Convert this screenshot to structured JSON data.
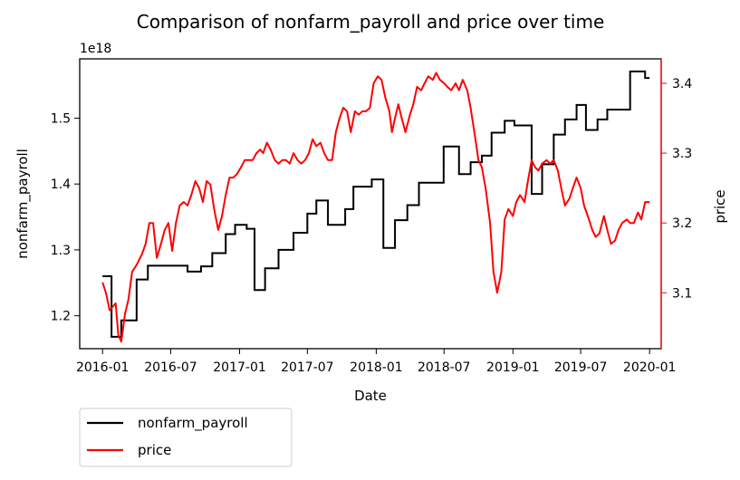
{
  "chart_data": {
    "type": "line",
    "title": "Comparison of nonfarm_payroll and price over time",
    "xlabel": "Date",
    "y1label": "nonfarm_payroll",
    "y2label": "price",
    "y1_offset_label": "1e18",
    "y1_scale": 1e+18,
    "x_range": [
      "2015-11-01",
      "2020-02-01"
    ],
    "y1_range": [
      1.15,
      1.59
    ],
    "y2_range": [
      3.02,
      3.435
    ],
    "x_ticks": [
      "2016-01",
      "2016-07",
      "2017-01",
      "2017-07",
      "2018-01",
      "2018-07",
      "2019-01",
      "2019-07",
      "2020-01"
    ],
    "y1_ticks": [
      "1.2",
      "1.3",
      "1.4",
      "1.5"
    ],
    "y2_ticks": [
      "3.1",
      "3.2",
      "3.3",
      "3.4"
    ],
    "colors": {
      "nonfarm_payroll": "#000000",
      "price": "#ff0000"
    },
    "legend_placement": "below-left",
    "series": [
      {
        "name": "nonfarm_payroll",
        "axis": "left",
        "step": true,
        "points": [
          [
            "2016-01-01",
            1.26
          ],
          [
            "2016-01-25",
            1.168
          ],
          [
            "2016-02-20",
            1.193
          ],
          [
            "2016-04-01",
            1.255
          ],
          [
            "2016-05-01",
            1.276
          ],
          [
            "2016-08-15",
            1.267
          ],
          [
            "2016-09-20",
            1.275
          ],
          [
            "2016-10-20",
            1.295
          ],
          [
            "2016-11-25",
            1.324
          ],
          [
            "2016-12-20",
            1.338
          ],
          [
            "2017-01-20",
            1.332
          ],
          [
            "2017-02-10",
            1.239
          ],
          [
            "2017-03-10",
            1.272
          ],
          [
            "2017-04-15",
            1.3
          ],
          [
            "2017-05-25",
            1.326
          ],
          [
            "2017-07-01",
            1.355
          ],
          [
            "2017-07-25",
            1.375
          ],
          [
            "2017-08-25",
            1.338
          ],
          [
            "2017-10-10",
            1.362
          ],
          [
            "2017-11-01",
            1.396
          ],
          [
            "2017-12-20",
            1.407
          ],
          [
            "2018-01-20",
            1.303
          ],
          [
            "2018-02-20",
            1.345
          ],
          [
            "2018-03-25",
            1.368
          ],
          [
            "2018-04-25",
            1.402
          ],
          [
            "2018-06-30",
            1.457
          ],
          [
            "2018-08-10",
            1.415
          ],
          [
            "2018-09-10",
            1.433
          ],
          [
            "2018-10-10",
            1.443
          ],
          [
            "2018-11-05",
            1.478
          ],
          [
            "2018-12-10",
            1.496
          ],
          [
            "2019-01-05",
            1.489
          ],
          [
            "2019-02-20",
            1.385
          ],
          [
            "2019-03-20",
            1.43
          ],
          [
            "2019-04-20",
            1.475
          ],
          [
            "2019-05-20",
            1.498
          ],
          [
            "2019-06-20",
            1.52
          ],
          [
            "2019-07-15",
            1.482
          ],
          [
            "2019-08-15",
            1.498
          ],
          [
            "2019-09-10",
            1.513
          ],
          [
            "2019-11-10",
            1.571
          ],
          [
            "2019-12-20",
            1.561
          ],
          [
            "2020-01-01",
            1.561
          ]
        ]
      },
      {
        "name": "price",
        "axis": "right",
        "step": false,
        "points": [
          [
            "2016-01-01",
            3.115
          ],
          [
            "2016-01-10",
            3.1
          ],
          [
            "2016-01-20",
            3.075
          ],
          [
            "2016-02-05",
            3.085
          ],
          [
            "2016-02-12",
            3.04
          ],
          [
            "2016-02-20",
            3.03
          ],
          [
            "2016-03-01",
            3.07
          ],
          [
            "2016-03-10",
            3.09
          ],
          [
            "2016-03-20",
            3.13
          ],
          [
            "2016-04-01",
            3.14
          ],
          [
            "2016-04-15",
            3.155
          ],
          [
            "2016-04-25",
            3.17
          ],
          [
            "2016-05-05",
            3.2
          ],
          [
            "2016-05-15",
            3.2
          ],
          [
            "2016-05-25",
            3.15
          ],
          [
            "2016-06-05",
            3.17
          ],
          [
            "2016-06-15",
            3.19
          ],
          [
            "2016-06-25",
            3.2
          ],
          [
            "2016-07-05",
            3.16
          ],
          [
            "2016-07-15",
            3.2
          ],
          [
            "2016-07-25",
            3.225
          ],
          [
            "2016-08-05",
            3.23
          ],
          [
            "2016-08-15",
            3.225
          ],
          [
            "2016-08-25",
            3.24
          ],
          [
            "2016-09-05",
            3.26
          ],
          [
            "2016-09-15",
            3.25
          ],
          [
            "2016-09-25",
            3.23
          ],
          [
            "2016-10-05",
            3.26
          ],
          [
            "2016-10-15",
            3.255
          ],
          [
            "2016-10-25",
            3.22
          ],
          [
            "2016-11-05",
            3.19
          ],
          [
            "2016-11-15",
            3.21
          ],
          [
            "2016-11-25",
            3.24
          ],
          [
            "2016-12-05",
            3.265
          ],
          [
            "2016-12-15",
            3.265
          ],
          [
            "2016-12-25",
            3.27
          ],
          [
            "2017-01-05",
            3.28
          ],
          [
            "2017-01-15",
            3.29
          ],
          [
            "2017-01-25",
            3.29
          ],
          [
            "2017-02-05",
            3.29
          ],
          [
            "2017-02-15",
            3.3
          ],
          [
            "2017-02-25",
            3.305
          ],
          [
            "2017-03-05",
            3.3
          ],
          [
            "2017-03-15",
            3.315
          ],
          [
            "2017-03-25",
            3.305
          ],
          [
            "2017-04-05",
            3.29
          ],
          [
            "2017-04-15",
            3.285
          ],
          [
            "2017-04-25",
            3.29
          ],
          [
            "2017-05-05",
            3.29
          ],
          [
            "2017-05-15",
            3.285
          ],
          [
            "2017-05-25",
            3.3
          ],
          [
            "2017-06-05",
            3.29
          ],
          [
            "2017-06-15",
            3.285
          ],
          [
            "2017-06-25",
            3.29
          ],
          [
            "2017-07-05",
            3.3
          ],
          [
            "2017-07-15",
            3.32
          ],
          [
            "2017-07-25",
            3.31
          ],
          [
            "2017-08-05",
            3.315
          ],
          [
            "2017-08-15",
            3.3
          ],
          [
            "2017-08-25",
            3.29
          ],
          [
            "2017-09-05",
            3.29
          ],
          [
            "2017-09-15",
            3.33
          ],
          [
            "2017-09-25",
            3.35
          ],
          [
            "2017-10-05",
            3.365
          ],
          [
            "2017-10-15",
            3.36
          ],
          [
            "2017-10-25",
            3.33
          ],
          [
            "2017-11-05",
            3.36
          ],
          [
            "2017-11-15",
            3.355
          ],
          [
            "2017-11-25",
            3.36
          ],
          [
            "2017-12-05",
            3.36
          ],
          [
            "2017-12-15",
            3.365
          ],
          [
            "2017-12-25",
            3.4
          ],
          [
            "2018-01-05",
            3.41
          ],
          [
            "2018-01-15",
            3.405
          ],
          [
            "2018-01-25",
            3.38
          ],
          [
            "2018-02-05",
            3.36
          ],
          [
            "2018-02-12",
            3.33
          ],
          [
            "2018-02-20",
            3.35
          ],
          [
            "2018-03-01",
            3.37
          ],
          [
            "2018-03-10",
            3.35
          ],
          [
            "2018-03-20",
            3.33
          ],
          [
            "2018-04-01",
            3.355
          ],
          [
            "2018-04-10",
            3.37
          ],
          [
            "2018-04-20",
            3.395
          ],
          [
            "2018-05-01",
            3.39
          ],
          [
            "2018-05-10",
            3.4
          ],
          [
            "2018-05-20",
            3.41
          ],
          [
            "2018-06-01",
            3.405
          ],
          [
            "2018-06-10",
            3.415
          ],
          [
            "2018-06-20",
            3.405
          ],
          [
            "2018-07-01",
            3.4
          ],
          [
            "2018-07-10",
            3.395
          ],
          [
            "2018-07-20",
            3.39
          ],
          [
            "2018-08-01",
            3.4
          ],
          [
            "2018-08-10",
            3.39
          ],
          [
            "2018-08-20",
            3.405
          ],
          [
            "2018-09-01",
            3.39
          ],
          [
            "2018-09-10",
            3.365
          ],
          [
            "2018-09-20",
            3.33
          ],
          [
            "2018-10-01",
            3.29
          ],
          [
            "2018-10-10",
            3.28
          ],
          [
            "2018-10-20",
            3.25
          ],
          [
            "2018-11-01",
            3.2
          ],
          [
            "2018-11-10",
            3.13
          ],
          [
            "2018-11-20",
            3.1
          ],
          [
            "2018-12-01",
            3.13
          ],
          [
            "2018-12-10",
            3.205
          ],
          [
            "2018-12-20",
            3.22
          ],
          [
            "2019-01-01",
            3.21
          ],
          [
            "2019-01-10",
            3.23
          ],
          [
            "2019-01-20",
            3.24
          ],
          [
            "2019-02-01",
            3.23
          ],
          [
            "2019-02-10",
            3.26
          ],
          [
            "2019-02-20",
            3.29
          ],
          [
            "2019-03-01",
            3.28
          ],
          [
            "2019-03-10",
            3.275
          ],
          [
            "2019-03-20",
            3.285
          ],
          [
            "2019-04-01",
            3.29
          ],
          [
            "2019-04-10",
            3.285
          ],
          [
            "2019-04-20",
            3.29
          ],
          [
            "2019-05-01",
            3.275
          ],
          [
            "2019-05-10",
            3.25
          ],
          [
            "2019-05-20",
            3.225
          ],
          [
            "2019-06-01",
            3.235
          ],
          [
            "2019-06-10",
            3.25
          ],
          [
            "2019-06-20",
            3.265
          ],
          [
            "2019-07-01",
            3.25
          ],
          [
            "2019-07-10",
            3.225
          ],
          [
            "2019-07-20",
            3.21
          ],
          [
            "2019-08-01",
            3.19
          ],
          [
            "2019-08-10",
            3.18
          ],
          [
            "2019-08-20",
            3.185
          ],
          [
            "2019-09-01",
            3.21
          ],
          [
            "2019-09-10",
            3.19
          ],
          [
            "2019-09-20",
            3.17
          ],
          [
            "2019-10-01",
            3.175
          ],
          [
            "2019-10-10",
            3.19
          ],
          [
            "2019-10-20",
            3.2
          ],
          [
            "2019-11-01",
            3.205
          ],
          [
            "2019-11-10",
            3.2
          ],
          [
            "2019-11-20",
            3.2
          ],
          [
            "2019-12-01",
            3.215
          ],
          [
            "2019-12-10",
            3.205
          ],
          [
            "2019-12-20",
            3.23
          ],
          [
            "2020-01-01",
            3.23
          ]
        ]
      }
    ]
  }
}
